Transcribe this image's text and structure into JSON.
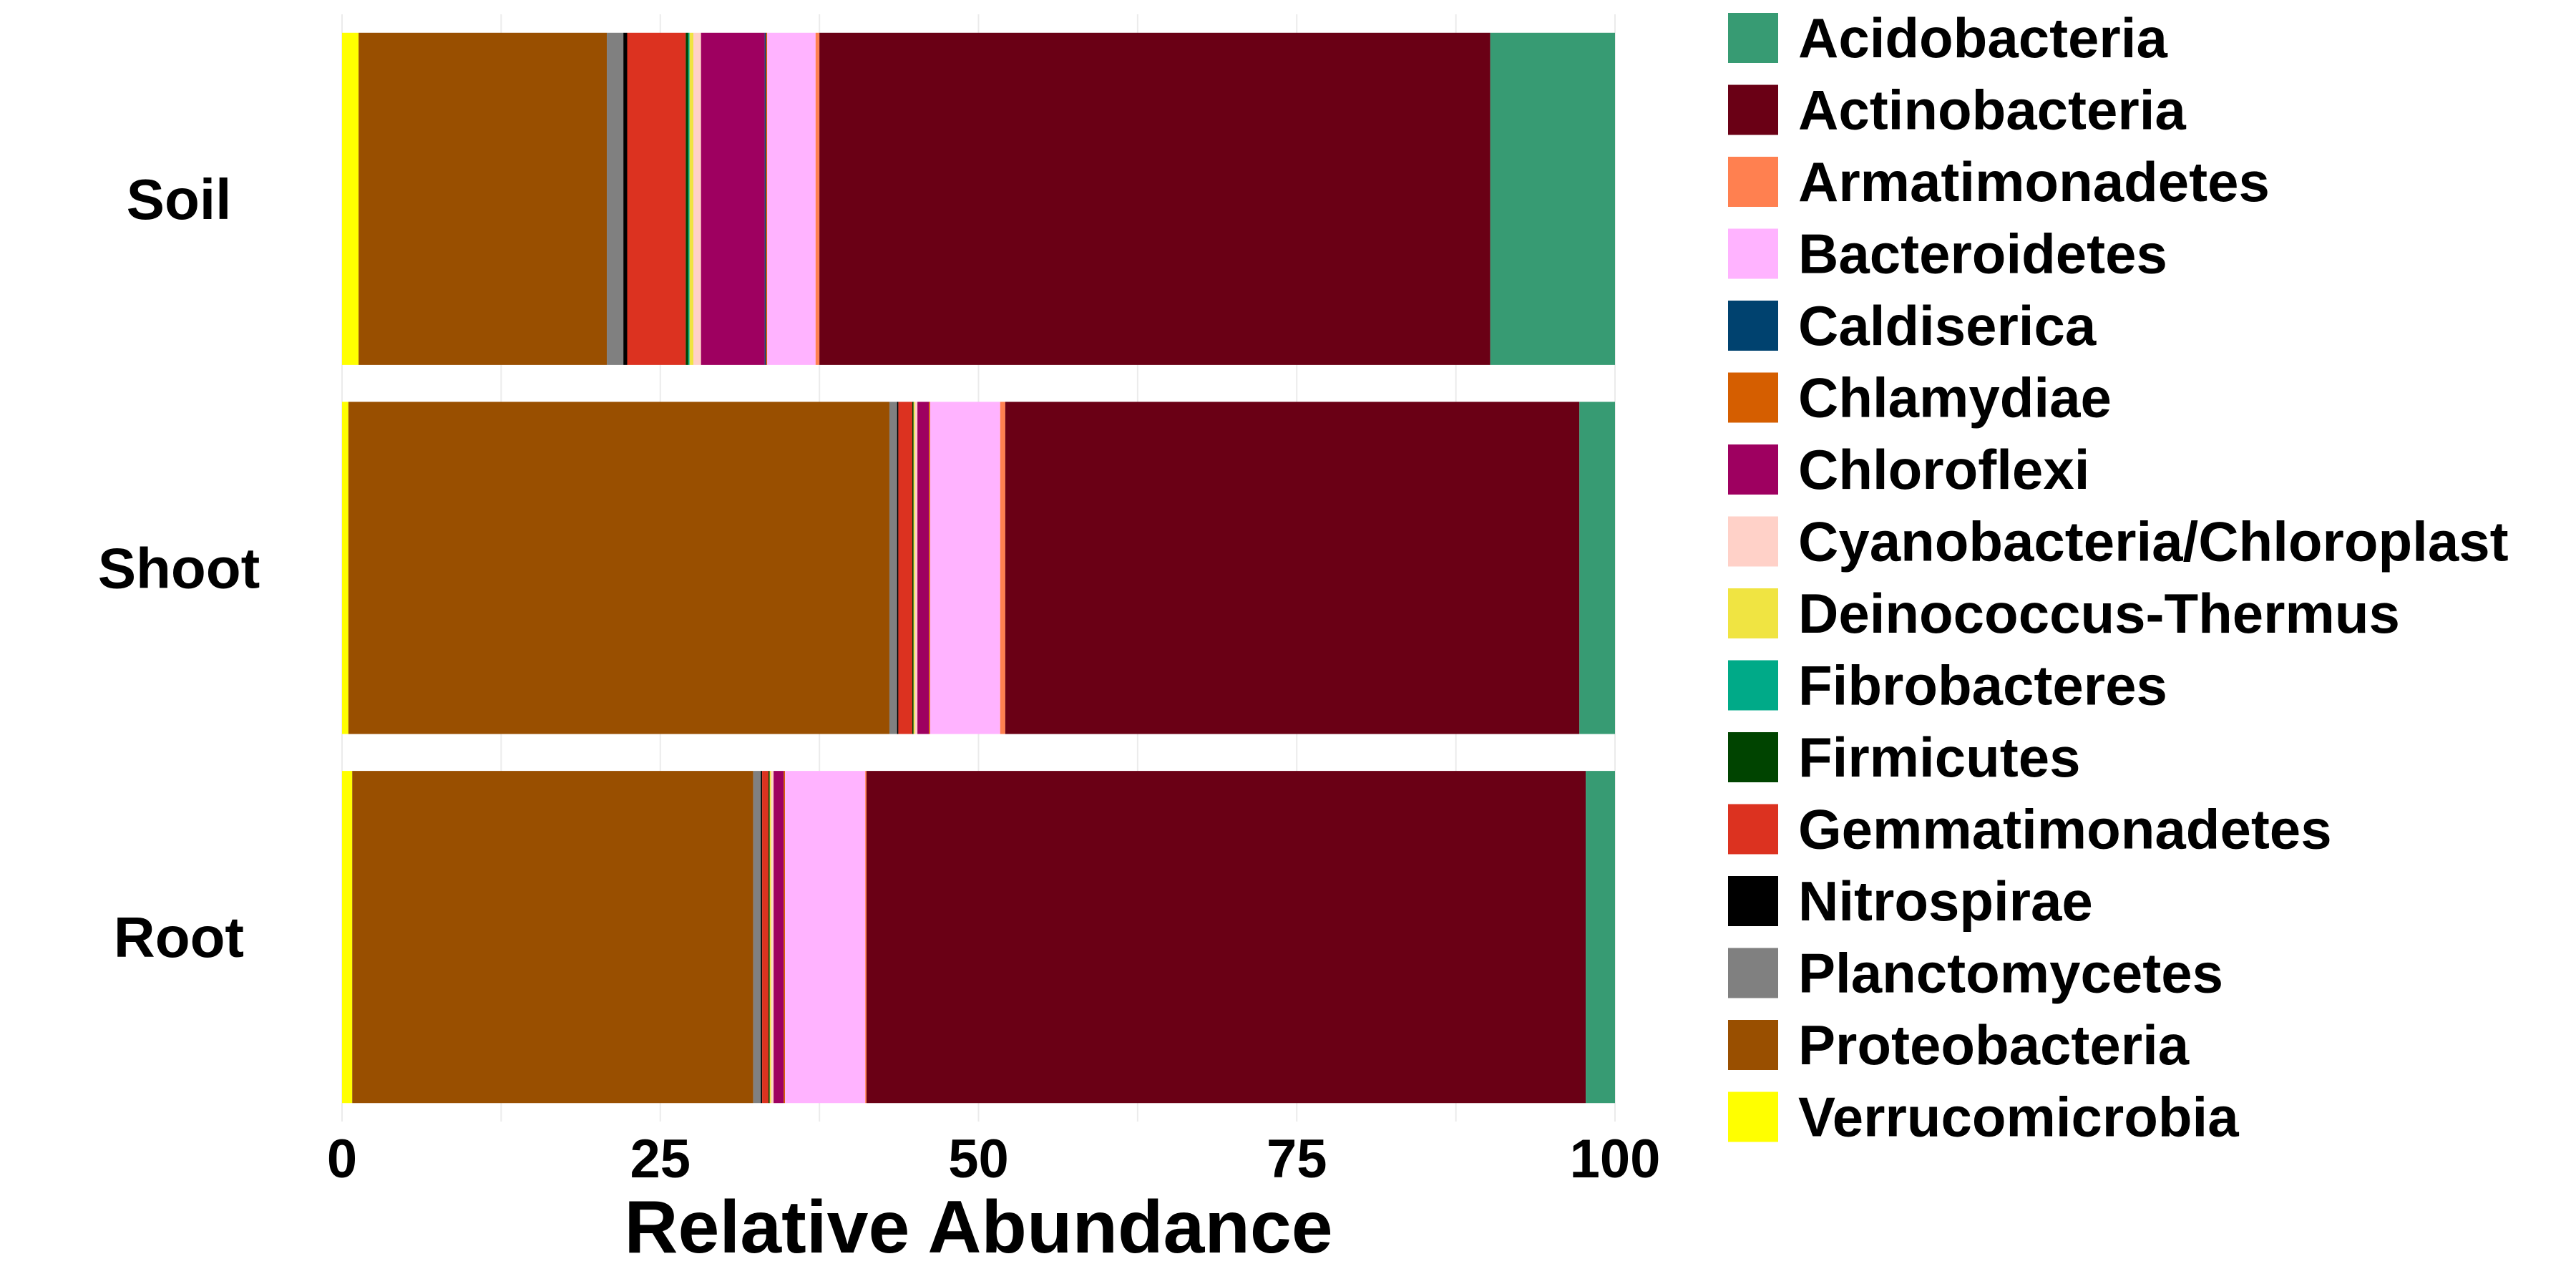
{
  "chart_data": {
    "type": "bar",
    "orientation": "horizontal",
    "stacked": true,
    "title": "",
    "xlabel": "Relative Abundance",
    "ylabel": "",
    "xlim": [
      0,
      100
    ],
    "xticks": [
      "0",
      "25",
      "50",
      "75",
      "100"
    ],
    "grid": true,
    "legend_position": "right",
    "categories": [
      "Soil",
      "Shoot",
      "Root"
    ],
    "series": [
      {
        "name": "Verrucomicrobia",
        "color": "#FFFF00",
        "values": [
          1.3,
          0.5,
          0.8
        ]
      },
      {
        "name": "Proteobacteria",
        "color": "#994F00",
        "values": [
          19.5,
          42.5,
          31.5
        ]
      },
      {
        "name": "Planctomycetes",
        "color": "#808080",
        "values": [
          1.3,
          0.6,
          0.6
        ]
      },
      {
        "name": "Nitrospirae",
        "color": "#000000",
        "values": [
          0.3,
          0.1,
          0.1
        ]
      },
      {
        "name": "Gemmatimonadetes",
        "color": "#DC3220",
        "values": [
          4.6,
          1.1,
          0.5
        ]
      },
      {
        "name": "Firmicutes",
        "color": "#004400",
        "values": [
          0.2,
          0.1,
          0.1
        ]
      },
      {
        "name": "Fibrobacteres",
        "color": "#00AA88",
        "values": [
          0.1,
          0.0,
          0.0
        ]
      },
      {
        "name": "Deinococcus-Thermus",
        "color": "#F0E442",
        "values": [
          0.3,
          0.1,
          0.1
        ]
      },
      {
        "name": "Cyanobacteria/Chloroplast",
        "color": "#FFD1C8",
        "values": [
          0.6,
          0.2,
          0.2
        ]
      },
      {
        "name": "Chloroflexi",
        "color": "#9E0060",
        "values": [
          5.0,
          0.9,
          0.8
        ]
      },
      {
        "name": "Caldiserica",
        "color": "#00426F",
        "values": [
          0.1,
          0.0,
          0.0
        ]
      },
      {
        "name": "Chlamydiae",
        "color": "#D55E00",
        "values": [
          0.1,
          0.1,
          0.1
        ]
      },
      {
        "name": "Bacteroidetes",
        "color": "#FFB3FF",
        "values": [
          3.8,
          5.5,
          6.3
        ]
      },
      {
        "name": "Armatimonadetes",
        "color": "#FF8050",
        "values": [
          0.3,
          0.4,
          0.1
        ]
      },
      {
        "name": "Actinobacteria",
        "color": "#6A0015",
        "values": [
          52.7,
          45.1,
          56.5
        ]
      },
      {
        "name": "Acidobacteria",
        "color": "#379B73",
        "values": [
          9.8,
          2.8,
          2.3
        ]
      }
    ],
    "legend": [
      {
        "name": "Acidobacteria",
        "color": "#379B73"
      },
      {
        "name": "Actinobacteria",
        "color": "#6A0015"
      },
      {
        "name": "Armatimonadetes",
        "color": "#FF8050"
      },
      {
        "name": "Bacteroidetes",
        "color": "#FFB3FF"
      },
      {
        "name": "Caldiserica",
        "color": "#00426F"
      },
      {
        "name": "Chlamydiae",
        "color": "#D55E00"
      },
      {
        "name": "Chloroflexi",
        "color": "#9E0060"
      },
      {
        "name": "Cyanobacteria/Chloroplast",
        "color": "#FFD1C8"
      },
      {
        "name": "Deinococcus-Thermus",
        "color": "#F0E442"
      },
      {
        "name": "Fibrobacteres",
        "color": "#00AA88"
      },
      {
        "name": "Firmicutes",
        "color": "#004400"
      },
      {
        "name": "Gemmatimonadetes",
        "color": "#DC3220"
      },
      {
        "name": "Nitrospirae",
        "color": "#000000"
      },
      {
        "name": "Planctomycetes",
        "color": "#808080"
      },
      {
        "name": "Proteobacteria",
        "color": "#994F00"
      },
      {
        "name": "Verrucomicrobia",
        "color": "#FFFF00"
      }
    ]
  }
}
